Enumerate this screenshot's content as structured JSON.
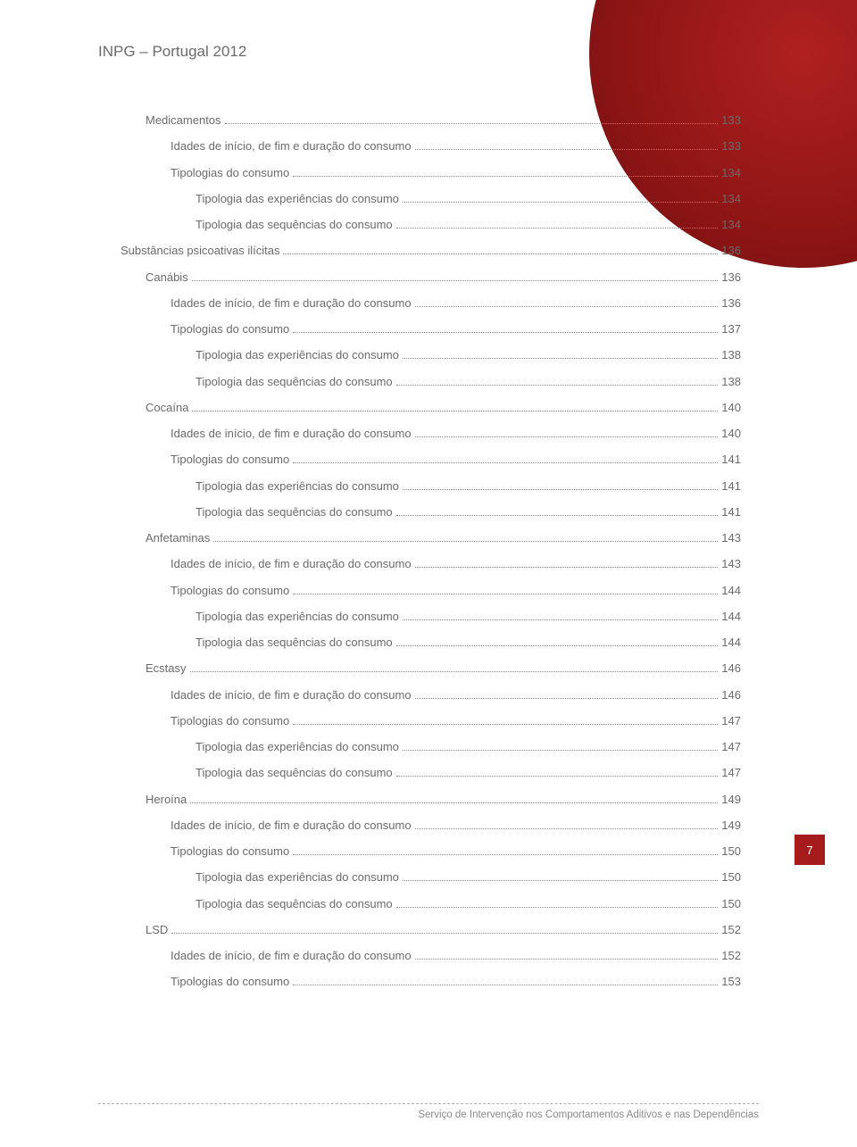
{
  "header": "INPG – Portugal 2012",
  "page_number": "7",
  "footer": "Serviço de Intervenção nos Comportamentos Aditivos e nas Dependências",
  "colors": {
    "accent": "#a61c1c",
    "text": "#6b6b6b",
    "dots": "#8a8a8a",
    "background": "#ffffff"
  },
  "toc": [
    {
      "level": 1,
      "label": "Medicamentos",
      "page": "133"
    },
    {
      "level": 2,
      "label": "Idades de início, de fim e duração do consumo",
      "page": "133"
    },
    {
      "level": 2,
      "label": "Tipologias do consumo",
      "page": "134"
    },
    {
      "level": 3,
      "label": "Tipologia das experiências do consumo",
      "page": "134"
    },
    {
      "level": 3,
      "label": "Tipologia das sequências do consumo",
      "page": "134"
    },
    {
      "level": 0,
      "label": "Substâncias psicoativas ilícitas",
      "page": "136"
    },
    {
      "level": 1,
      "label": "Canábis",
      "page": "136"
    },
    {
      "level": 2,
      "label": "Idades de início, de fim e duração do consumo",
      "page": "136"
    },
    {
      "level": 2,
      "label": "Tipologias do consumo",
      "page": "137"
    },
    {
      "level": 3,
      "label": "Tipologia das experiências do consumo",
      "page": "138"
    },
    {
      "level": 3,
      "label": "Tipologia das sequências do consumo",
      "page": "138"
    },
    {
      "level": 1,
      "label": "Cocaína",
      "page": "140"
    },
    {
      "level": 2,
      "label": "Idades de início, de fim e duração do consumo",
      "page": "140"
    },
    {
      "level": 2,
      "label": "Tipologias do consumo",
      "page": "141"
    },
    {
      "level": 3,
      "label": "Tipologia das experiências do consumo",
      "page": "141"
    },
    {
      "level": 3,
      "label": "Tipologia das sequências do consumo",
      "page": "141"
    },
    {
      "level": 1,
      "label": "Anfetaminas",
      "page": "143"
    },
    {
      "level": 2,
      "label": "Idades de início, de fim e duração do consumo",
      "page": "143"
    },
    {
      "level": 2,
      "label": "Tipologias do consumo",
      "page": "144"
    },
    {
      "level": 3,
      "label": "Tipologia das experiências do consumo",
      "page": "144"
    },
    {
      "level": 3,
      "label": "Tipologia das sequências do consumo",
      "page": "144"
    },
    {
      "level": 1,
      "label": "Ecstasy",
      "page": "146"
    },
    {
      "level": 2,
      "label": "Idades de início, de fim e duração do consumo",
      "page": "146"
    },
    {
      "level": 2,
      "label": "Tipologias do consumo",
      "page": "147"
    },
    {
      "level": 3,
      "label": "Tipologia das experiências do consumo",
      "page": "147"
    },
    {
      "level": 3,
      "label": "Tipologia das sequências do consumo",
      "page": "147"
    },
    {
      "level": 1,
      "label": "Heroína",
      "page": "149"
    },
    {
      "level": 2,
      "label": "Idades de início, de fim e duração do consumo",
      "page": "149"
    },
    {
      "level": 2,
      "label": "Tipologias do consumo",
      "page": "150"
    },
    {
      "level": 3,
      "label": "Tipologia das experiências do consumo",
      "page": "150"
    },
    {
      "level": 3,
      "label": "Tipologia das sequências do consumo",
      "page": "150"
    },
    {
      "level": 1,
      "label": "LSD",
      "page": "152"
    },
    {
      "level": 2,
      "label": "Idades de início, de fim e duração do consumo",
      "page": "152"
    },
    {
      "level": 2,
      "label": "Tipologias do consumo",
      "page": "153"
    }
  ]
}
